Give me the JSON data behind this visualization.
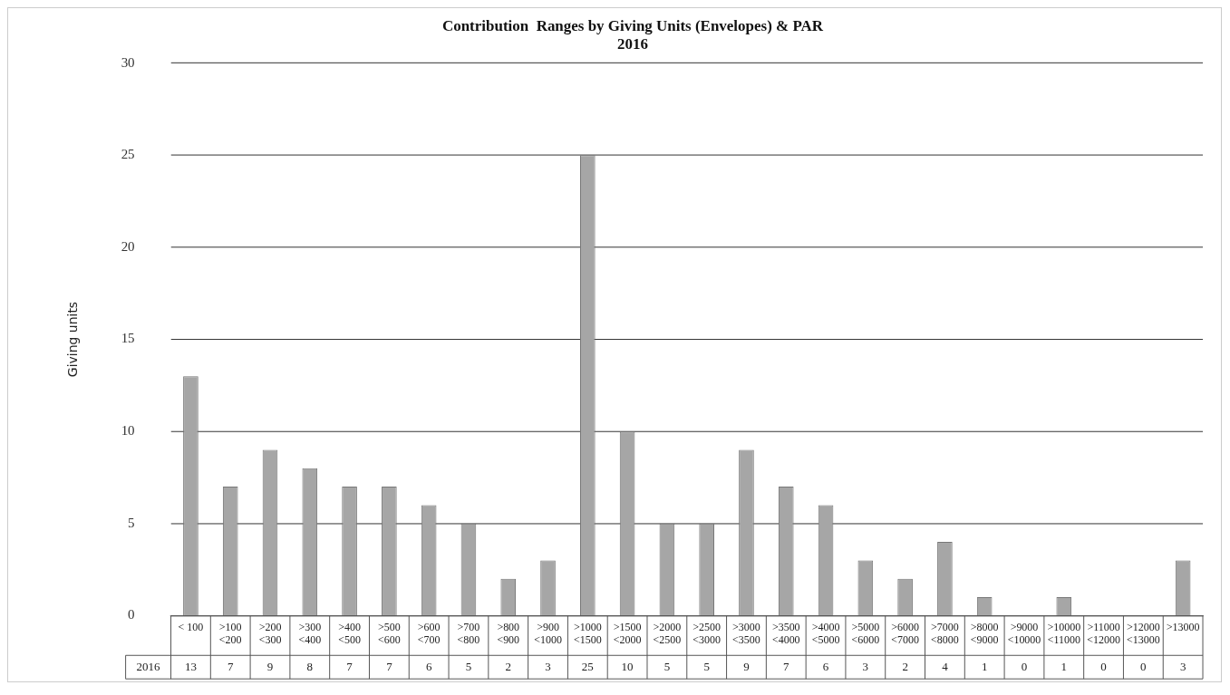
{
  "chart_data": {
    "type": "bar",
    "title": "Contribution  Ranges by Giving Units (Envelopes) & PAR",
    "subtitle": "2016",
    "ylabel": "Giving units",
    "categories": [
      "< 100",
      ">100 <200",
      ">200 <300",
      ">300 <400",
      ">400 <500",
      ">500 <600",
      ">600 <700",
      ">700 <800",
      ">800 <900",
      ">900 <1000",
      ">1000 <1500",
      ">1500 <2000",
      ">2000 <2500",
      ">2500 <3000",
      ">3000 <3500",
      ">3500 <4000",
      ">4000 <5000",
      ">5000 <6000",
      ">6000 <7000",
      ">7000 <8000",
      ">8000 <9000",
      ">9000 <10000",
      ">10000 <11000",
      ">11000 <12000",
      ">12000 <13000",
      ">13000"
    ],
    "series": [
      {
        "name": "2016",
        "color": "#a6a6a6",
        "values": [
          13,
          7,
          9,
          8,
          7,
          7,
          6,
          5,
          2,
          3,
          25,
          10,
          5,
          5,
          9,
          7,
          6,
          3,
          2,
          4,
          1,
          0,
          1,
          0,
          0,
          3
        ]
      }
    ],
    "ylim": [
      0,
      30
    ],
    "yticks": [
      0,
      5,
      10,
      15,
      20,
      25,
      30
    ],
    "grid": "y",
    "data_labels": true
  }
}
